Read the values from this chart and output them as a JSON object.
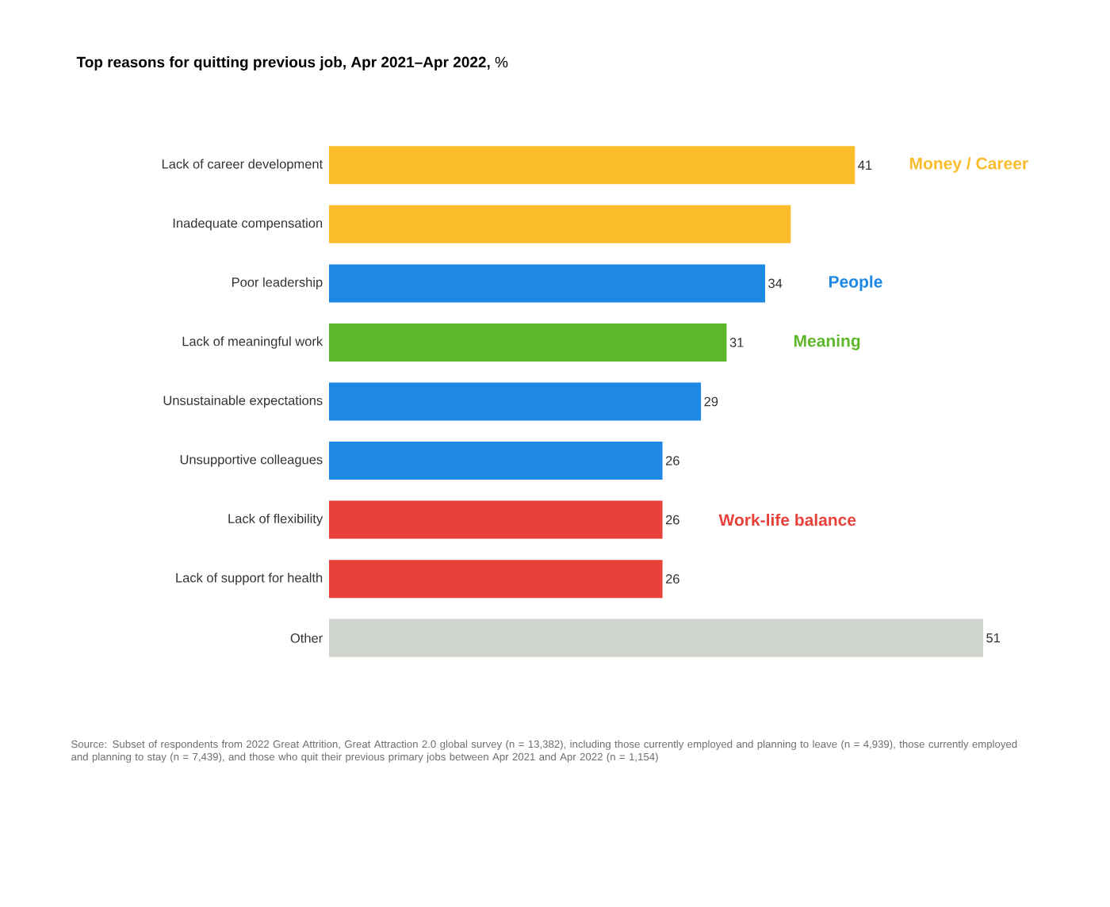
{
  "chart_data": {
    "type": "bar",
    "orientation": "horizontal",
    "title": "**Top reasons for quitting previous job, Apr 2021–Apr 2022,** %",
    "categories": [
      "Lack of career development",
      "Inadequate compensation",
      "Poor leadership",
      "Lack of meaningful work",
      "Unsustainable expectations",
      "Unsupportive colleagues",
      "Lack of flexibility",
      "Lack of support for health",
      "Other"
    ],
    "values": [
      41,
      36,
      34,
      31,
      29,
      26,
      26,
      26,
      51
    ],
    "value_labels": [
      "41",
      null,
      "34",
      "31",
      "29",
      "26",
      "26",
      "26",
      "51"
    ],
    "colors": [
      "#fbbc2c",
      "#fbbc2c",
      "#1e88e5",
      "#5cb82a",
      "#1e88e5",
      "#1e88e5",
      "#e8413a",
      "#e8413a",
      "#cfd4cc"
    ],
    "tick_labels": "y",
    "annotations": [
      "Money / Career",
      "People",
      "Meaning",
      "Work-life balance",
      "Source: Subset of respondents from 2022 Great Attrition, Great Attraction 2.0 global survey (n = 13,382), including those currently employed and planning to leave (n = 4,939), those currently employed and planning to stay (n = 7,439), and those who quit their previous primary jobs between Apr 2021 and Apr 2022 (n = 1,154)"
    ]
  }
}
